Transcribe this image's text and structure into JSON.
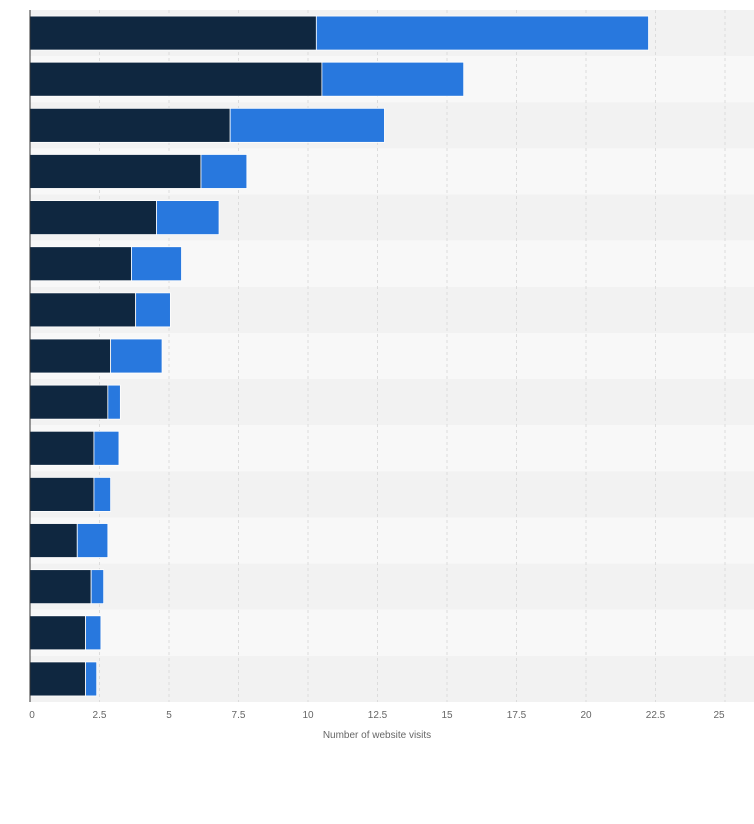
{
  "chart_data": {
    "type": "bar",
    "orientation": "horizontal",
    "stacked": true,
    "categories": [
      "",
      "",
      "",
      "",
      "",
      "",
      "",
      "",
      "",
      "",
      "",
      "",
      "",
      "",
      ""
    ],
    "series": [
      {
        "color": "#0f2740",
        "values": [
          10.3,
          10.5,
          7.2,
          6.15,
          4.55,
          3.65,
          3.8,
          2.9,
          2.8,
          2.3,
          2.3,
          1.7,
          2.2,
          2.0,
          2.0
        ]
      },
      {
        "color": "#2878de",
        "values": [
          11.95,
          5.1,
          5.55,
          1.65,
          2.25,
          1.8,
          1.25,
          1.85,
          0.45,
          0.9,
          0.6,
          1.1,
          0.45,
          0.55,
          0.4
        ]
      }
    ],
    "xlabel": "Number of website visits",
    "ylabel": "",
    "xlim": [
      0,
      25
    ],
    "xticks": [
      "0",
      "2.5",
      "5",
      "7.5",
      "10",
      "12.5",
      "15",
      "17.5",
      "20",
      "22.5",
      "25"
    ],
    "grid": true
  }
}
